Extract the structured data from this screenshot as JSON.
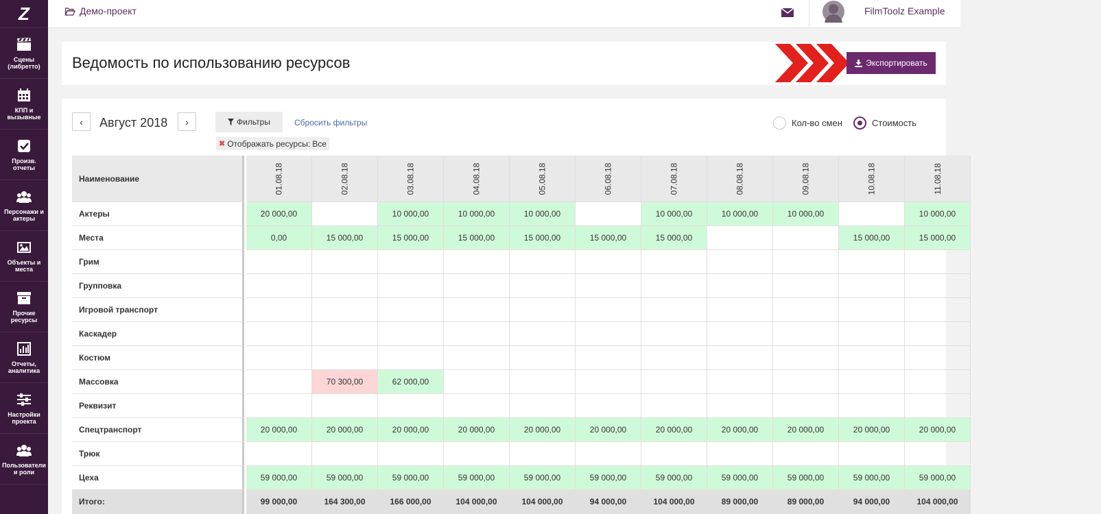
{
  "logo": "Z",
  "sidebar": {
    "items": [
      {
        "label": "Сцены (либретто)",
        "icon": "clapperboard-icon"
      },
      {
        "label": "КПП и вызывные",
        "icon": "calendar-icon"
      },
      {
        "label": "Произв. отчеты",
        "icon": "checkbox-icon"
      },
      {
        "label": "Персонажи и актеры",
        "icon": "users-icon"
      },
      {
        "label": "Объекты и места",
        "icon": "image-icon"
      },
      {
        "label": "Прочие ресурсы",
        "icon": "archive-icon"
      },
      {
        "label": "Отчеты, аналитика",
        "icon": "bar-chart-icon"
      },
      {
        "label": "Настройки проекта",
        "icon": "sliders-icon"
      },
      {
        "label": "Пользователи и роли",
        "icon": "user-group-icon"
      }
    ]
  },
  "topbar": {
    "project": "Демо-проект",
    "username": "FilmToolz Example"
  },
  "page": {
    "title": "Ведомость по использованию ресурсов",
    "export_label": "Экспортировать"
  },
  "controls": {
    "prev": "‹",
    "next": "›",
    "month": "Август 2018",
    "filters_label": "Фильтры",
    "reset_label": "Сбросить фильтры",
    "chip_label": "Отображать ресурсы:",
    "chip_value": "Все",
    "radio_shifts": "Кол-во смен",
    "radio_cost": "Стоимость",
    "selected": "cost"
  },
  "colors": {
    "accent": "#6b2a6d",
    "green_cell": "#cffad9",
    "red_cell": "#fdd5d5",
    "sidebar": "#3a1a3c"
  },
  "table": {
    "name_header": "Наименование",
    "dates": [
      "01.08.18",
      "02.08.18",
      "03.08.18",
      "04.08.18",
      "05.08.18",
      "06.08.18",
      "07.08.18",
      "08.08.18",
      "09.08.18",
      "10.08.18",
      "11.08.18"
    ],
    "rows": [
      {
        "name": "Актеры",
        "cells": [
          {
            "v": "20 000,00",
            "c": "green"
          },
          {
            "v": "",
            "c": ""
          },
          {
            "v": "10 000,00",
            "c": "green"
          },
          {
            "v": "10 000,00",
            "c": "green"
          },
          {
            "v": "10 000,00",
            "c": "green"
          },
          {
            "v": "",
            "c": ""
          },
          {
            "v": "10 000,00",
            "c": "green"
          },
          {
            "v": "10 000,00",
            "c": "green"
          },
          {
            "v": "10 000,00",
            "c": "green"
          },
          {
            "v": "",
            "c": ""
          },
          {
            "v": "10 000,00",
            "c": "green"
          }
        ]
      },
      {
        "name": "Места",
        "cells": [
          {
            "v": "0,00",
            "c": "green"
          },
          {
            "v": "15 000,00",
            "c": "green"
          },
          {
            "v": "15 000,00",
            "c": "green"
          },
          {
            "v": "15 000,00",
            "c": "green"
          },
          {
            "v": "15 000,00",
            "c": "green"
          },
          {
            "v": "15 000,00",
            "c": "green"
          },
          {
            "v": "15 000,00",
            "c": "green"
          },
          {
            "v": "",
            "c": ""
          },
          {
            "v": "",
            "c": ""
          },
          {
            "v": "15 000,00",
            "c": "green"
          },
          {
            "v": "15 000,00",
            "c": "green"
          }
        ]
      },
      {
        "name": "Грим",
        "cells": []
      },
      {
        "name": "Групповка",
        "cells": []
      },
      {
        "name": "Игровой транспорт",
        "cells": []
      },
      {
        "name": "Каскадер",
        "cells": []
      },
      {
        "name": "Костюм",
        "cells": []
      },
      {
        "name": "Массовка",
        "cells": [
          {
            "v": "",
            "c": ""
          },
          {
            "v": "70 300,00",
            "c": "red"
          },
          {
            "v": "62 000,00",
            "c": "green"
          }
        ]
      },
      {
        "name": "Реквизит",
        "cells": []
      },
      {
        "name": "Спецтранспорт",
        "cells": [
          {
            "v": "20 000,00",
            "c": "green"
          },
          {
            "v": "20 000,00",
            "c": "green"
          },
          {
            "v": "20 000,00",
            "c": "green"
          },
          {
            "v": "20 000,00",
            "c": "green"
          },
          {
            "v": "20 000,00",
            "c": "green"
          },
          {
            "v": "20 000,00",
            "c": "green"
          },
          {
            "v": "20 000,00",
            "c": "green"
          },
          {
            "v": "20 000,00",
            "c": "green"
          },
          {
            "v": "20 000,00",
            "c": "green"
          },
          {
            "v": "20 000,00",
            "c": "green"
          },
          {
            "v": "20 000,00",
            "c": "green"
          }
        ]
      },
      {
        "name": "Трюк",
        "cells": []
      },
      {
        "name": "Цеха",
        "cells": [
          {
            "v": "59 000,00",
            "c": "green"
          },
          {
            "v": "59 000,00",
            "c": "green"
          },
          {
            "v": "59 000,00",
            "c": "green"
          },
          {
            "v": "59 000,00",
            "c": "green"
          },
          {
            "v": "59 000,00",
            "c": "green"
          },
          {
            "v": "59 000,00",
            "c": "green"
          },
          {
            "v": "59 000,00",
            "c": "green"
          },
          {
            "v": "59 000,00",
            "c": "green"
          },
          {
            "v": "59 000,00",
            "c": "green"
          },
          {
            "v": "59 000,00",
            "c": "green"
          },
          {
            "v": "59 000,00",
            "c": "green"
          }
        ]
      }
    ],
    "total_label": "Итого:",
    "totals": [
      "99 000,00",
      "164 300,00",
      "166 000,00",
      "104 000,00",
      "104 000,00",
      "94 000,00",
      "104 000,00",
      "89 000,00",
      "89 000,00",
      "94 000,00",
      "104 000,00"
    ]
  }
}
